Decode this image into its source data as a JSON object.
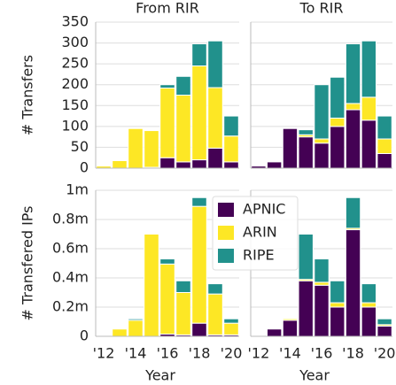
{
  "chart_data": [
    {
      "type": "bar",
      "title": "From RIR",
      "ylabel": "# Transfers",
      "x": [
        2012,
        2013,
        2014,
        2015,
        2016,
        2017,
        2018,
        2019,
        2020
      ],
      "series": [
        {
          "name": "APNIC",
          "color": "#440154",
          "values": [
            0,
            0,
            0,
            2,
            25,
            15,
            20,
            48,
            15
          ]
        },
        {
          "name": "ARIN",
          "color": "#fde725",
          "values": [
            5,
            18,
            95,
            88,
            167,
            160,
            225,
            145,
            62
          ]
        },
        {
          "name": "RIPE",
          "color": "#21918c",
          "values": [
            0,
            0,
            0,
            0,
            8,
            45,
            53,
            112,
            48
          ]
        }
      ],
      "xlim": [
        2011.5,
        2020.5
      ],
      "ylim": [
        0,
        350
      ],
      "yticks": [
        0,
        50,
        100,
        150,
        200,
        250,
        300,
        350
      ],
      "grid": true
    },
    {
      "type": "bar",
      "title": "To RIR",
      "x": [
        2012,
        2013,
        2014,
        2015,
        2016,
        2017,
        2018,
        2019,
        2020
      ],
      "series": [
        {
          "color": "#440154",
          "values": [
            5,
            15,
            95,
            75,
            60,
            100,
            140,
            115,
            35
          ]
        },
        {
          "color": "#fde725",
          "values": [
            0,
            0,
            0,
            5,
            10,
            20,
            15,
            55,
            35
          ]
        },
        {
          "color": "#21918c",
          "values": [
            0,
            0,
            0,
            12,
            130,
            98,
            143,
            135,
            55
          ]
        }
      ],
      "xlim": [
        2011.5,
        2020.5
      ],
      "ylim": [
        0,
        350
      ],
      "grid": true
    },
    {
      "type": "bar",
      "ylabel": "# Transfered IPs",
      "xlabel": "Year",
      "x": [
        2012,
        2013,
        2014,
        2015,
        2016,
        2017,
        2018,
        2019,
        2020
      ],
      "series": [
        {
          "color": "#440154",
          "values": [
            0,
            0,
            0,
            0,
            15000,
            10000,
            90000,
            10000,
            10000
          ]
        },
        {
          "color": "#fde725",
          "values": [
            5000,
            50000,
            110000,
            700000,
            480000,
            290000,
            800000,
            280000,
            80000
          ]
        },
        {
          "color": "#21918c",
          "values": [
            0,
            0,
            10000,
            0,
            35000,
            80000,
            60000,
            70000,
            30000
          ]
        }
      ],
      "xlim": [
        2011.5,
        2020.5
      ],
      "ylim": [
        0,
        1000000
      ],
      "yticks": [
        0,
        {
          "value": 200000,
          "label": "0.2m"
        },
        {
          "value": 400000,
          "label": "0.4m"
        },
        {
          "value": 600000,
          "label": "0.6m"
        },
        {
          "value": 800000,
          "label": "0.8m"
        },
        {
          "value": 1000000,
          "label": "1m"
        }
      ],
      "xticks": [
        {
          "value": 2012,
          "label": "'12"
        },
        {
          "value": 2014,
          "label": "'14"
        },
        {
          "value": 2016,
          "label": "'16"
        },
        {
          "value": 2018,
          "label": "'18"
        },
        {
          "value": 2020,
          "label": "'20"
        }
      ],
      "grid": true
    },
    {
      "type": "bar",
      "xlabel": "Year",
      "x": [
        2012,
        2013,
        2014,
        2015,
        2016,
        2017,
        2018,
        2019,
        2020
      ],
      "series": [
        {
          "color": "#440154",
          "values": [
            5000,
            50000,
            110000,
            380000,
            350000,
            200000,
            730000,
            200000,
            70000
          ]
        },
        {
          "color": "#fde725",
          "values": [
            0,
            0,
            10000,
            10000,
            20000,
            30000,
            10000,
            30000,
            10000
          ]
        },
        {
          "color": "#21918c",
          "values": [
            0,
            0,
            0,
            310000,
            160000,
            150000,
            210000,
            130000,
            40000
          ]
        }
      ],
      "xlim": [
        2011.5,
        2020.5
      ],
      "ylim": [
        0,
        1000000
      ],
      "xticks": [
        {
          "value": 2012,
          "label": "'12"
        },
        {
          "value": 2014,
          "label": "'14"
        },
        {
          "value": 2016,
          "label": "'16"
        },
        {
          "value": 2018,
          "label": "'18"
        },
        {
          "value": 2020,
          "label": "'20"
        }
      ],
      "grid": true
    }
  ]
}
